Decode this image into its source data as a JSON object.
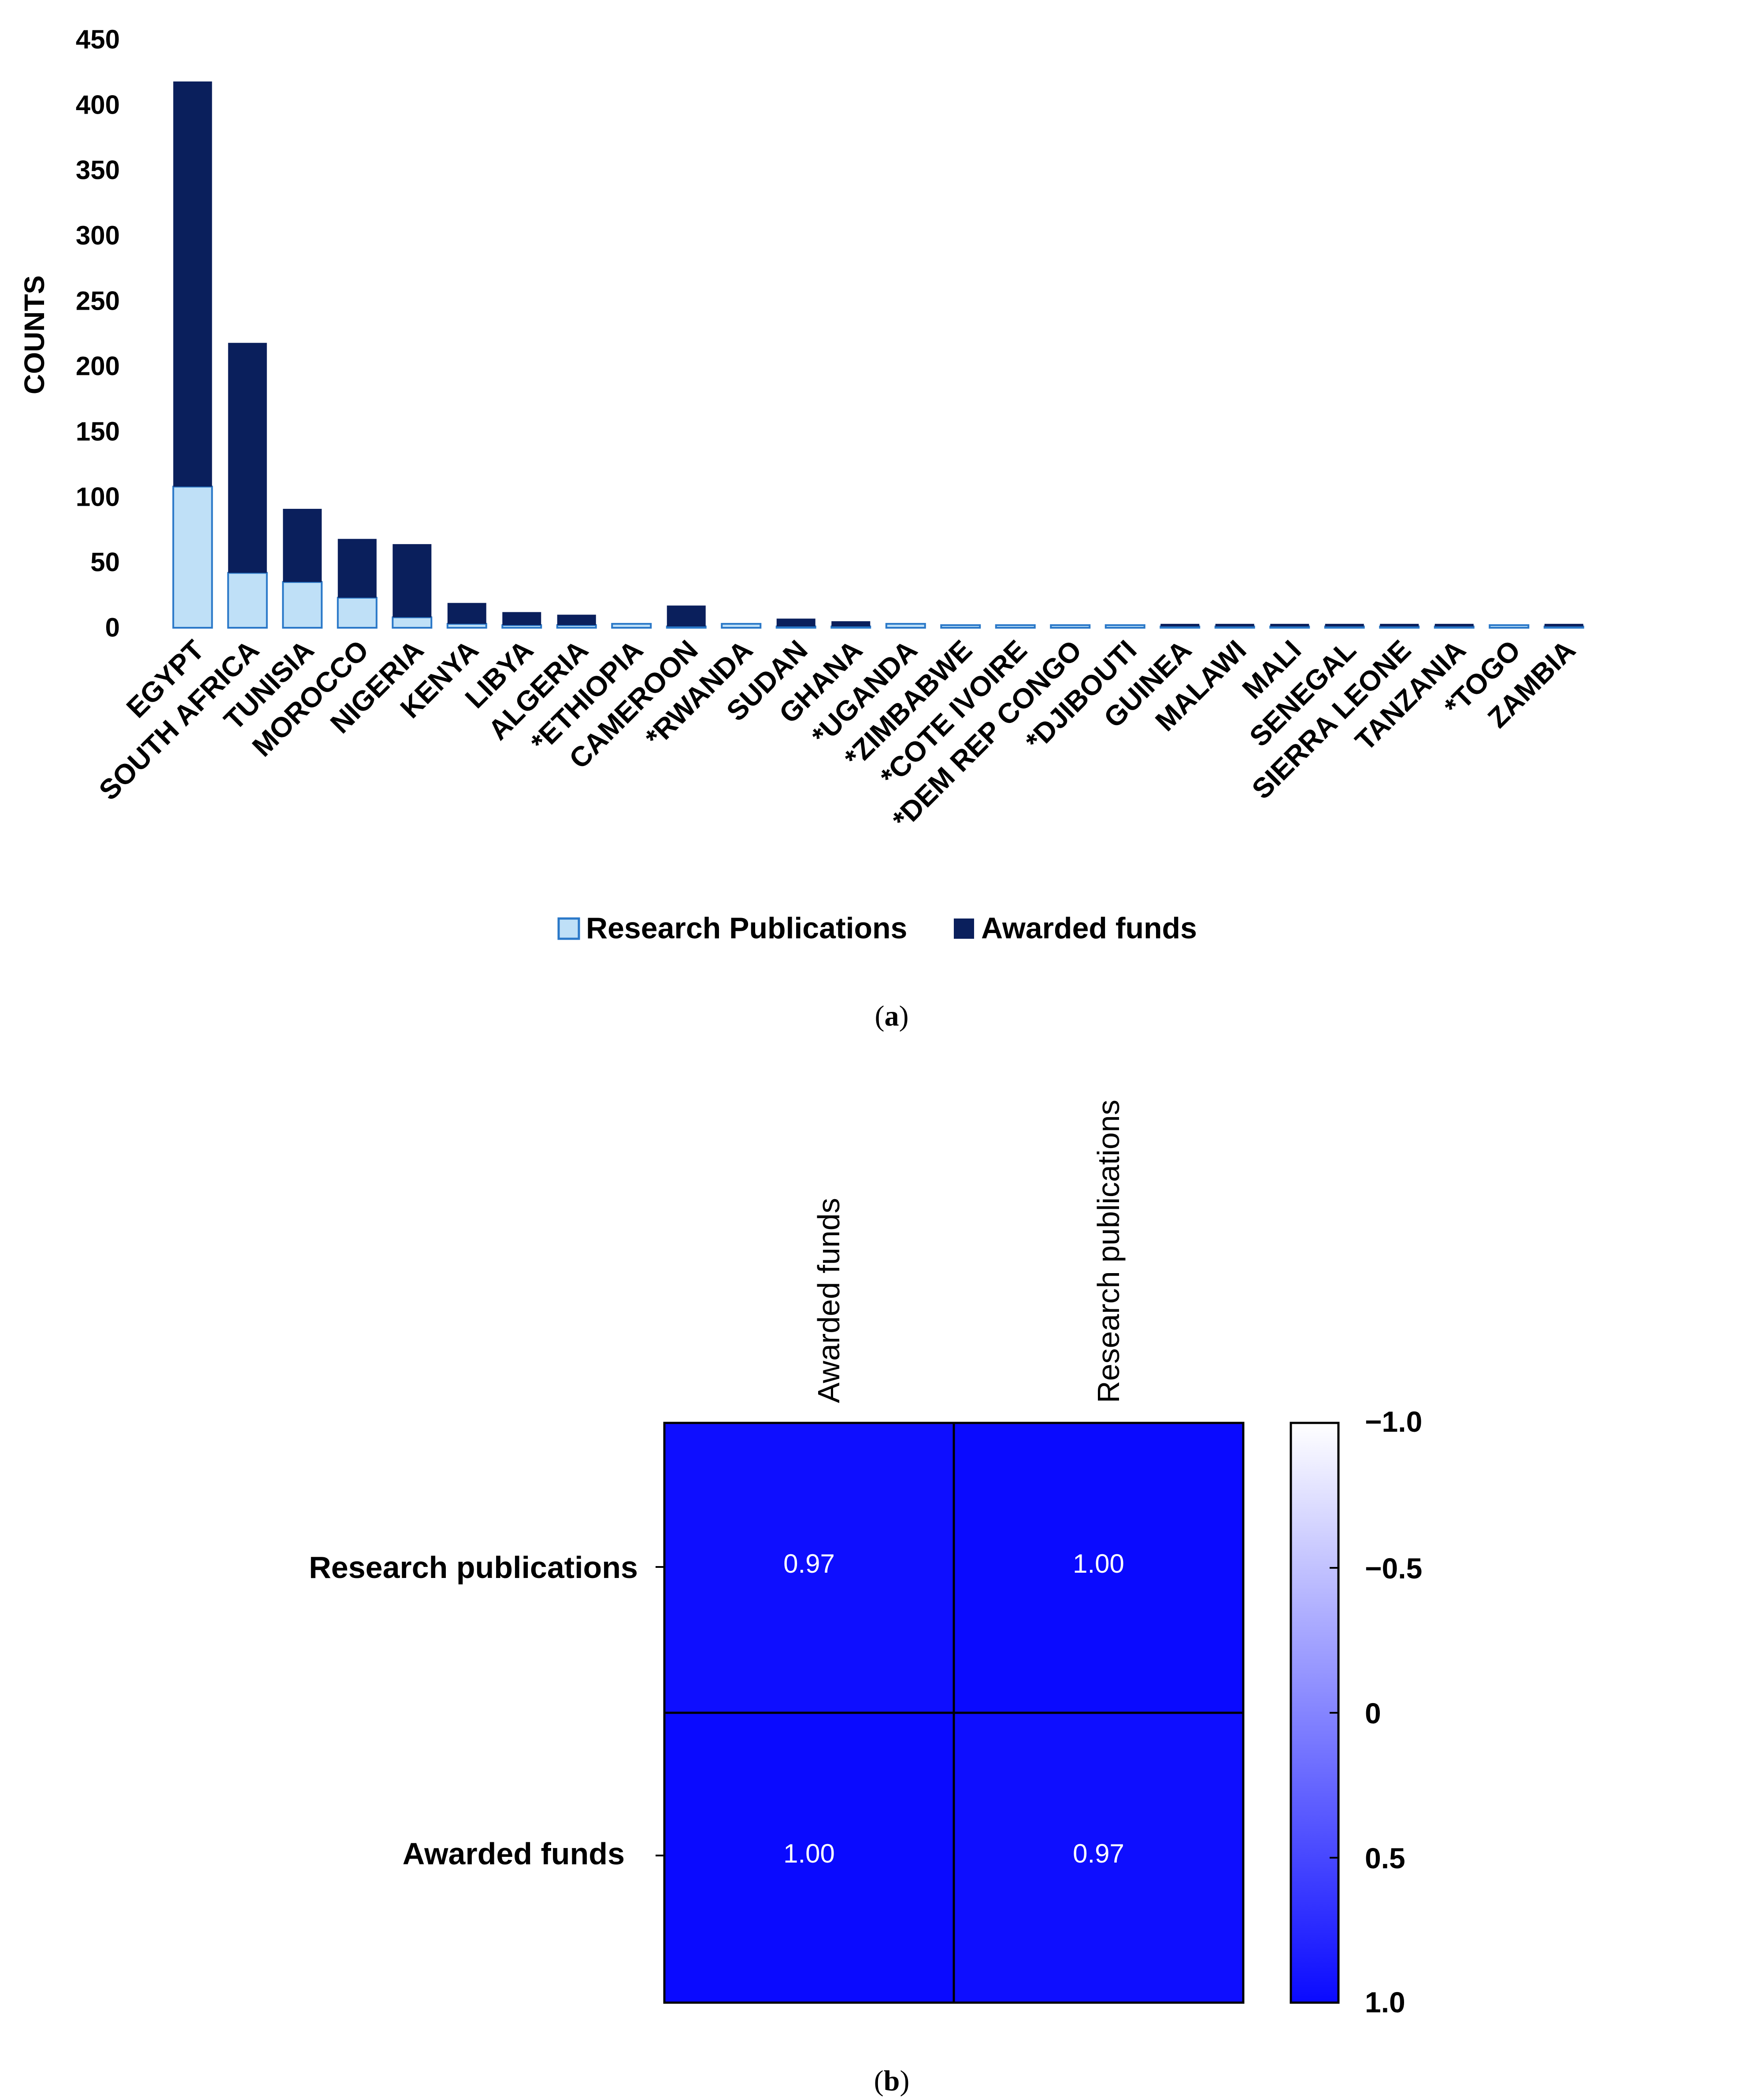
{
  "chart_data": [
    {
      "type": "bar",
      "stacked": true,
      "caption": "a",
      "ylabel": "COUNTS",
      "ylim": [
        0,
        450
      ],
      "yticks": [
        0,
        50,
        100,
        150,
        200,
        250,
        300,
        350,
        400,
        450
      ],
      "categories": [
        "EGYPT",
        "SOUTH AFRICA",
        "TUNISIA",
        "MOROCCO",
        "NIGERIA",
        "KENYA",
        "LIBYA",
        "ALGERIA",
        "*ETHIOPIA",
        "CAMEROON",
        "*RWANDA",
        "SUDAN",
        "GHANA",
        "*UGANDA",
        "*ZIMBABWE",
        "*COTE IVOIRE",
        "*DEM REP CONGO",
        "*DJIBOUTI",
        "GUINEA",
        "MALAWI",
        "MALI",
        "SENEGAL",
        "SIERRA LEONE",
        "TANZANIA",
        "*TOGO",
        "ZAMBIA"
      ],
      "series": [
        {
          "name": "Research Publications",
          "color": "#bfe0f7",
          "values": [
            108,
            42,
            35,
            23,
            8,
            3,
            2,
            2,
            3,
            1,
            3,
            1,
            1,
            3,
            2,
            2,
            2,
            2,
            1,
            1,
            1,
            1,
            1,
            1,
            2,
            1
          ]
        },
        {
          "name": "Awarded funds",
          "color": "#0a1f5c",
          "values": [
            310,
            176,
            56,
            45,
            56,
            16,
            10,
            8,
            0,
            16,
            0,
            6,
            4,
            0,
            0,
            0,
            0,
            0,
            2,
            2,
            2,
            2,
            2,
            2,
            0,
            2
          ]
        }
      ],
      "legend": [
        "Research Publications",
        "Awarded funds"
      ]
    },
    {
      "type": "heatmap",
      "caption": "b",
      "columns": [
        "Awarded funds",
        "Research publications"
      ],
      "rows": [
        "Research publications",
        "Awarded funds"
      ],
      "values": [
        [
          0.97,
          1.0
        ],
        [
          1.0,
          0.97
        ]
      ],
      "value_labels": [
        [
          "0.97",
          "1.00"
        ],
        [
          "1.00",
          "0.97"
        ]
      ],
      "colorbar": {
        "range": [
          -1.0,
          1.0
        ],
        "ticks": [
          -1.0,
          -0.5,
          0,
          0.5,
          1.0
        ],
        "tick_labels": [
          "−1.0",
          "−0.5",
          "0",
          "0.5",
          "1.0"
        ],
        "low_color": "#ffffff",
        "high_color": "#0a0aff"
      }
    }
  ],
  "captions": {
    "a_open": "(",
    "a_letter": "a",
    "a_close": ")",
    "b_open": "(",
    "b_letter": "b",
    "b_close": ")"
  }
}
